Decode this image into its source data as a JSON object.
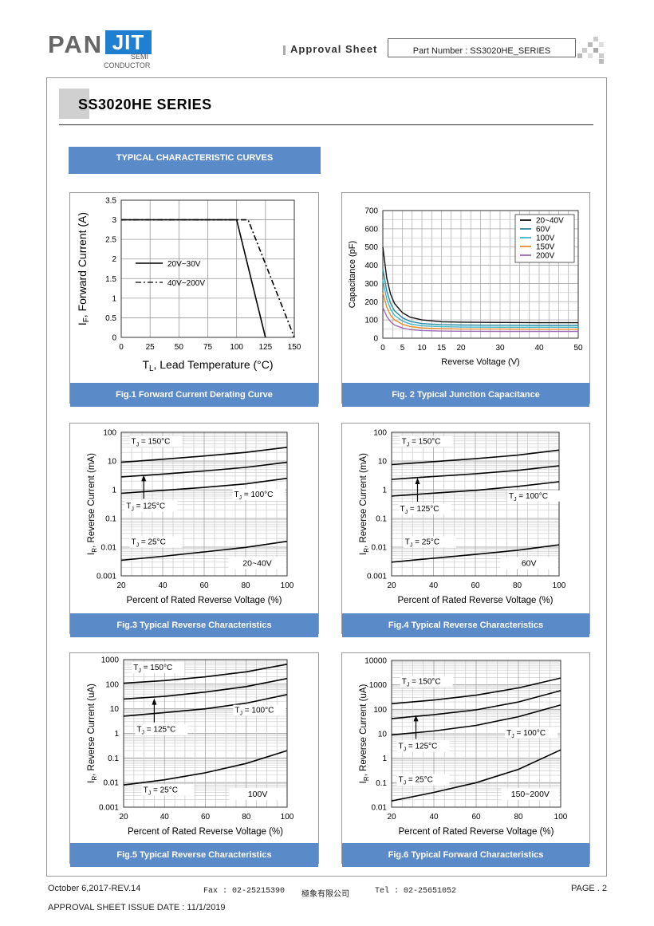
{
  "header": {
    "logo_pan": "PAN",
    "logo_jit": "JIT",
    "logo_semi": "SEMI",
    "logo_conductor": "CONDUCTOR",
    "approval_label": "Approval  Sheet",
    "part_number": "Part Number : SS3020HE_SERIES"
  },
  "title": "SS3020HE SERIES",
  "section_banner": "TYPICAL CHARACTERISTIC CURVES",
  "figures": {
    "fig1": {
      "caption": "Fig.1 Forward Current Derating Curve"
    },
    "fig2": {
      "caption": "Fig. 2 Typical Junction Capacitance"
    },
    "fig3": {
      "caption": "Fig.3 Typical Reverse Characteristics"
    },
    "fig4": {
      "caption": "Fig.4 Typical Reverse Characteristics"
    },
    "fig5": {
      "caption": "Fig.5 Typical Reverse Characteristics"
    },
    "fig6": {
      "caption": "Fig.6 Typical Forward Characteristics"
    }
  },
  "footer": {
    "revision": "October 6,2017-REV.14",
    "fax": "Fax : 02-25215390",
    "company": "極象有限公司",
    "tel": "Tel : 02-25651052",
    "page": "PAGE . 2",
    "issue_date": "APPROVAL SHEET ISSUE DATE : 11/1/2019"
  },
  "colors": {
    "banner": "#5b8ac8",
    "logo_blue": "#1f7fd0"
  },
  "chart_data": [
    {
      "id": "fig1",
      "type": "line",
      "xlabel": "T_L, Lead Temperature (°C)",
      "ylabel": "I_F, Forward Current (A)",
      "xlim": [
        0,
        150
      ],
      "ylim": [
        0,
        3.5
      ],
      "xticks": [
        "0",
        "25",
        "50",
        "75",
        "100",
        "125",
        "150"
      ],
      "yticks": [
        "0",
        "0.5",
        "1",
        "1.5",
        "2",
        "2.5",
        "3",
        "3.5"
      ],
      "grid": true,
      "series": [
        {
          "name": "20V~30V",
          "style": "solid",
          "x": [
            0,
            100,
            125
          ],
          "y": [
            3,
            3,
            0
          ]
        },
        {
          "name": "40V~200V",
          "style": "dashdot",
          "x": [
            0,
            110,
            150
          ],
          "y": [
            3,
            3,
            0
          ]
        }
      ]
    },
    {
      "id": "fig2",
      "type": "line",
      "xlabel": "Reverse Voltage (V)",
      "ylabel": "Capacitance (pF)",
      "xlim": [
        0,
        50
      ],
      "ylim": [
        0,
        700
      ],
      "xticks": [
        "0",
        "5",
        "10",
        "15",
        "20",
        "30",
        "40",
        "50"
      ],
      "yticks": [
        "0",
        "100",
        "200",
        "300",
        "400",
        "500",
        "600",
        "700"
      ],
      "grid": true,
      "legend": "top-right",
      "series": [
        {
          "name": "20~40V",
          "color": "#111111",
          "x": [
            0,
            1,
            2,
            3,
            5,
            7,
            10,
            15,
            20,
            30,
            40,
            50
          ],
          "y": [
            500,
            330,
            240,
            190,
            140,
            115,
            100,
            90,
            88,
            86,
            85,
            85
          ]
        },
        {
          "name": "60V",
          "color": "#2b8aa5",
          "x": [
            0,
            1,
            2,
            3,
            5,
            7,
            10,
            15,
            20,
            30,
            40,
            50
          ],
          "y": [
            380,
            260,
            190,
            150,
            112,
            92,
            80,
            74,
            72,
            71,
            70,
            70
          ]
        },
        {
          "name": "100V",
          "color": "#3fb6c8",
          "x": [
            0,
            1,
            2,
            3,
            5,
            7,
            10,
            15,
            20,
            30,
            40,
            50
          ],
          "y": [
            320,
            215,
            158,
            125,
            94,
            78,
            68,
            63,
            61,
            60,
            60,
            60
          ]
        },
        {
          "name": "150V",
          "color": "#e98a2c",
          "x": [
            0,
            1,
            2,
            3,
            5,
            7,
            10,
            15,
            20,
            30,
            40,
            50
          ],
          "y": [
            250,
            170,
            125,
            100,
            76,
            64,
            56,
            52,
            50,
            50,
            49,
            49
          ]
        },
        {
          "name": "200V",
          "color": "#9a6bb8",
          "x": [
            0,
            1,
            2,
            3,
            5,
            7,
            10,
            15,
            20,
            30,
            40,
            50
          ],
          "y": [
            170,
            120,
            90,
            72,
            56,
            47,
            42,
            39,
            38,
            37,
            37,
            37
          ]
        }
      ]
    },
    {
      "id": "fig3",
      "type": "line",
      "yscale": "log",
      "xlabel": "Percent of Rated Reverse Voltage (%)",
      "ylabel": "I_R, Reverse Current (mA)",
      "xlim": [
        20,
        100
      ],
      "ylim": [
        0.001,
        100
      ],
      "xticks": [
        "20",
        "40",
        "60",
        "80",
        "100"
      ],
      "yticks": [
        "0.001",
        "0.01",
        "0.1",
        "1",
        "10",
        "100"
      ],
      "grid": true,
      "note": "20~40V",
      "labels": [
        "T_J = 150°C",
        "T_J = 125°C",
        "T_J = 100°C",
        "T_J = 25°C"
      ],
      "series": [
        {
          "x": [
            20,
            40,
            60,
            80,
            100
          ],
          "y": [
            9,
            11.5,
            15,
            20,
            30
          ]
        },
        {
          "x": [
            20,
            40,
            60,
            80,
            100
          ],
          "y": [
            2.8,
            3.5,
            4.5,
            6,
            9
          ]
        },
        {
          "x": [
            20,
            40,
            60,
            80,
            100
          ],
          "y": [
            0.75,
            0.95,
            1.2,
            1.6,
            2.5
          ]
        },
        {
          "x": [
            20,
            40,
            60,
            80,
            100
          ],
          "y": [
            0.0035,
            0.0048,
            0.0068,
            0.0098,
            0.016
          ]
        }
      ]
    },
    {
      "id": "fig4",
      "type": "line",
      "yscale": "log",
      "xlabel": "Percent of Rated Reverse Voltage (%)",
      "ylabel": "I_R, Reverse Current (mA)",
      "xlim": [
        20,
        100
      ],
      "ylim": [
        0.001,
        100
      ],
      "xticks": [
        "20",
        "40",
        "60",
        "80",
        "100"
      ],
      "yticks": [
        "0.001",
        "0.01",
        "0.1",
        "1",
        "10",
        "100"
      ],
      "grid": true,
      "note": "60V",
      "labels": [
        "T_J = 150°C",
        "T_J = 125°C",
        "T_J = 100°C",
        "T_J = 25°C"
      ],
      "series": [
        {
          "x": [
            20,
            40,
            60,
            80,
            100
          ],
          "y": [
            7.5,
            9.5,
            12,
            16,
            24
          ]
        },
        {
          "x": [
            20,
            40,
            60,
            80,
            100
          ],
          "y": [
            2.3,
            2.9,
            3.6,
            4.7,
            6.8
          ]
        },
        {
          "x": [
            20,
            40,
            60,
            80,
            100
          ],
          "y": [
            0.6,
            0.76,
            0.95,
            1.3,
            1.9
          ]
        },
        {
          "x": [
            20,
            40,
            60,
            80,
            100
          ],
          "y": [
            0.003,
            0.0041,
            0.0056,
            0.0078,
            0.012
          ]
        }
      ]
    },
    {
      "id": "fig5",
      "type": "line",
      "yscale": "log",
      "xlabel": "Percent of Rated Reverse Voltage (%)",
      "ylabel": "I_R, Reverse Current (uA)",
      "xlim": [
        20,
        100
      ],
      "ylim": [
        0.001,
        1000
      ],
      "xticks": [
        "20",
        "40",
        "60",
        "80",
        "100"
      ],
      "yticks": [
        "0.001",
        "0.01",
        "0.1",
        "1",
        "10",
        "100",
        "1000"
      ],
      "grid": true,
      "note": "100V",
      "labels": [
        "T_J = 150°C",
        "T_J = 125°C",
        "T_J = 100°C",
        "T_J = 25°C"
      ],
      "series": [
        {
          "x": [
            20,
            40,
            60,
            80,
            100
          ],
          "y": [
            110,
            140,
            200,
            320,
            650
          ]
        },
        {
          "x": [
            20,
            40,
            60,
            80,
            100
          ],
          "y": [
            25,
            32,
            48,
            80,
            170
          ]
        },
        {
          "x": [
            20,
            40,
            60,
            80,
            100
          ],
          "y": [
            5,
            7,
            10,
            17,
            38
          ]
        },
        {
          "x": [
            20,
            40,
            60,
            80,
            100
          ],
          "y": [
            0.008,
            0.013,
            0.025,
            0.06,
            0.2
          ]
        }
      ]
    },
    {
      "id": "fig6",
      "type": "line",
      "yscale": "log",
      "xlabel": "Percent of Rated Reverse Voltage (%)",
      "ylabel": "I_R, Reverse Current (uA)",
      "xlim": [
        20,
        100
      ],
      "ylim": [
        0.01,
        10000
      ],
      "xticks": [
        "20",
        "40",
        "60",
        "80",
        "100"
      ],
      "yticks": [
        "0.01",
        "0.1",
        "1",
        "10",
        "100",
        "1000",
        "10000"
      ],
      "grid": true,
      "note": "150~200V",
      "labels": [
        "T_J = 150°C",
        "T_J = 125°C",
        "T_J = 100°C",
        "T_J = 25°C"
      ],
      "series": [
        {
          "x": [
            20,
            40,
            60,
            80,
            100
          ],
          "y": [
            170,
            240,
            380,
            750,
            1900
          ]
        },
        {
          "x": [
            20,
            40,
            60,
            80,
            100
          ],
          "y": [
            42,
            60,
            95,
            200,
            580
          ]
        },
        {
          "x": [
            20,
            40,
            60,
            80,
            100
          ],
          "y": [
            9,
            13,
            22,
            50,
            150
          ]
        },
        {
          "x": [
            20,
            40,
            60,
            80,
            100
          ],
          "y": [
            0.018,
            0.04,
            0.1,
            0.35,
            2.2
          ]
        }
      ]
    }
  ]
}
